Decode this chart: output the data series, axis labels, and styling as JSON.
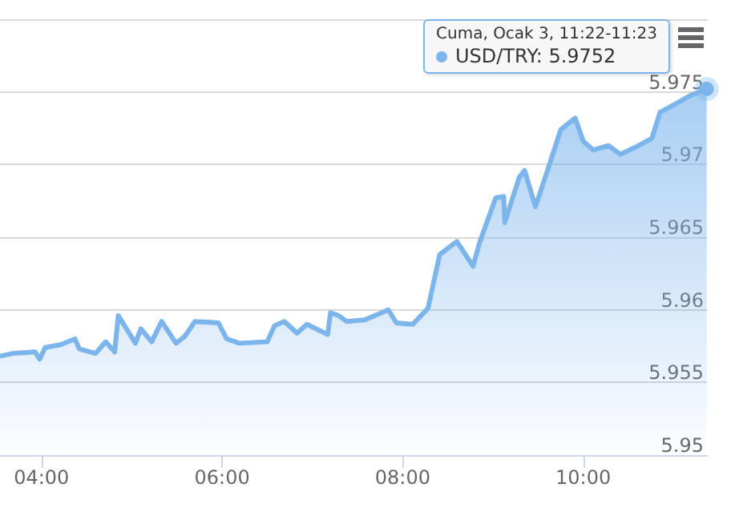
{
  "chart_data": {
    "type": "area",
    "x": [
      3.54,
      3.68,
      3.93,
      3.98,
      4.04,
      4.21,
      4.37,
      4.42,
      4.6,
      4.71,
      4.81,
      4.85,
      5.04,
      5.1,
      5.22,
      5.33,
      5.49,
      5.59,
      5.7,
      5.96,
      6.05,
      6.19,
      6.5,
      6.58,
      6.69,
      6.83,
      6.94,
      7.17,
      7.2,
      7.29,
      7.38,
      7.58,
      7.84,
      7.93,
      8.11,
      8.28,
      8.41,
      8.6,
      8.78,
      8.85,
      9.03,
      9.12,
      9.13,
      9.29,
      9.35,
      9.47,
      9.61,
      9.75,
      9.91,
      10.0,
      10.11,
      10.28,
      10.41,
      10.58,
      10.76,
      10.85,
      11.06,
      11.17,
      11.367
    ],
    "series": [
      {
        "color": "#7cb5ec",
        "values": [
          5.9568,
          5.957,
          5.9571,
          5.9566,
          5.9574,
          5.9576,
          5.958,
          5.9573,
          5.957,
          5.9578,
          5.9571,
          5.9596,
          5.9577,
          5.9587,
          5.9578,
          5.9592,
          5.9577,
          5.9582,
          5.9592,
          5.9591,
          5.958,
          5.9577,
          5.9578,
          5.9589,
          5.9592,
          5.9584,
          5.959,
          5.9583,
          5.9598,
          5.9596,
          5.9592,
          5.9593,
          5.96,
          5.9591,
          5.959,
          5.9601,
          5.9638,
          5.9647,
          5.963,
          5.9646,
          5.9677,
          5.9678,
          5.966,
          5.9691,
          5.9696,
          5.9671,
          5.9697,
          5.9724,
          5.9732,
          5.9716,
          5.971,
          5.9713,
          5.9707,
          5.9712,
          5.9718,
          5.9736,
          5.9743,
          5.9747,
          5.9752
        ],
        "marker": "none"
      }
    ],
    "xlim": [
      3.54,
      11.37
    ],
    "xticks": [
      {
        "value": 4,
        "label": "04:00"
      },
      {
        "value": 6,
        "label": "06:00"
      },
      {
        "value": 8,
        "label": "08:00"
      },
      {
        "value": 10,
        "label": "10:00"
      }
    ],
    "ylim": [
      5.95,
      5.98
    ],
    "yticks": [
      5.95,
      5.955,
      5.96,
      5.965,
      5.97,
      5.975
    ],
    "grid": "y",
    "annotations": [
      "Cuma, Ocak 3, 11:22-11:23",
      "USD/TRY: 5.9752"
    ]
  }
}
